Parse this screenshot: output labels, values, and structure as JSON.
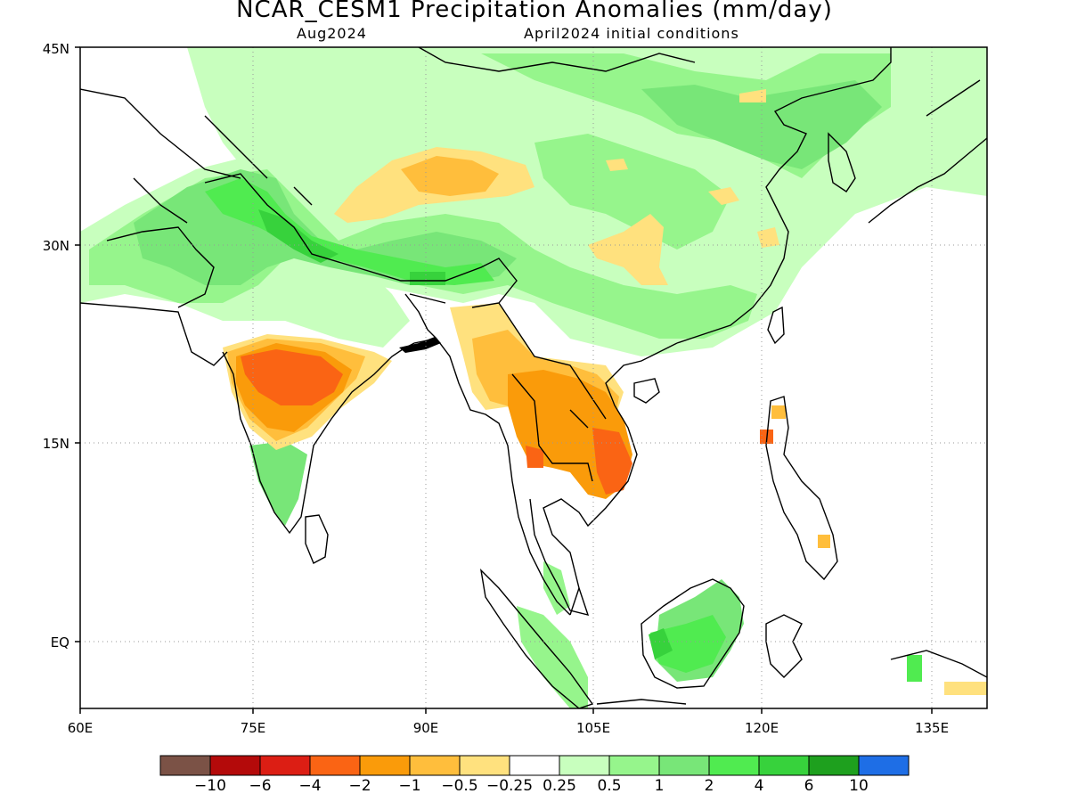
{
  "title": "NCAR_CESM1 Precipitation Anomalies (mm/day)",
  "subtitle_left": "Aug2024",
  "subtitle_right": "April2024 initial conditions",
  "x_ticks": [
    "60E",
    "75E",
    "90E",
    "105E",
    "120E",
    "135E"
  ],
  "y_ticks": [
    "45N",
    "30N",
    "15N",
    "EQ"
  ],
  "colorbar": {
    "colors": [
      "#7b5246",
      "#b40a0a",
      "#dc1e14",
      "#fa6414",
      "#fa9b0a",
      "#ffbe3c",
      "#ffe17e",
      "#ffffff",
      "#c8ffbe",
      "#96f58c",
      "#78e678",
      "#50eb50",
      "#37d23c",
      "#1ea01e",
      "#1e6ee6"
    ],
    "labels": [
      "−10",
      "−6",
      "−4",
      "−2",
      "−1",
      "−0.5",
      "−0.25",
      "0.25",
      "0.5",
      "1",
      "2",
      "4",
      "6",
      "10"
    ]
  }
}
